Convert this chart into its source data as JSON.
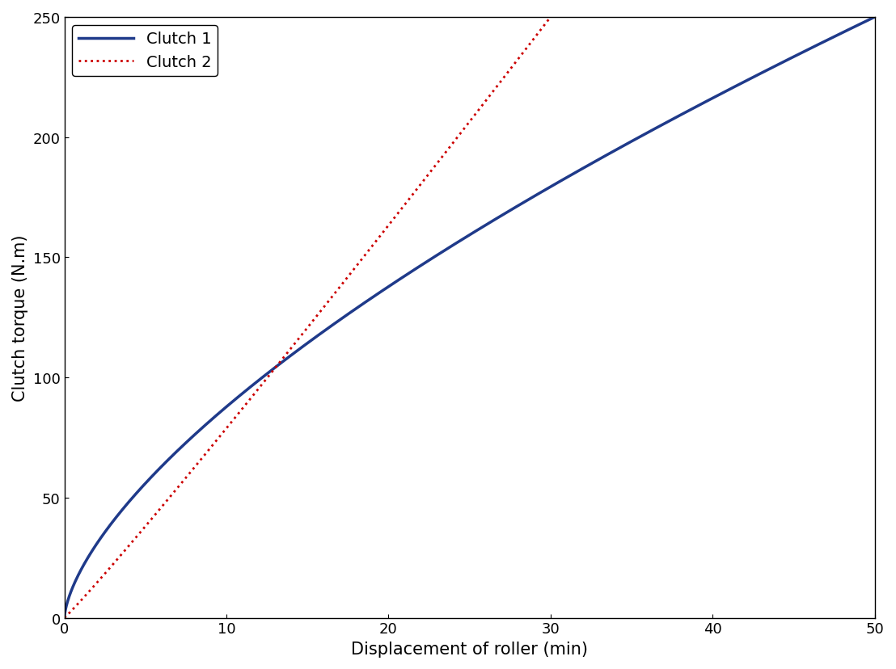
{
  "title": "",
  "xlabel": "Displacement of roller (min)",
  "ylabel": "Clutch torque (N.m)",
  "xlim": [
    0,
    50
  ],
  "ylim": [
    0,
    250
  ],
  "xticks": [
    0,
    10,
    20,
    30,
    40,
    50
  ],
  "yticks": [
    0,
    50,
    100,
    150,
    200,
    250
  ],
  "clutch1_label": "Clutch 1",
  "clutch2_label": "Clutch 2",
  "clutch1_color": "#1f3a8a",
  "clutch2_color": "#cc0000",
  "clutch1_linewidth": 2.5,
  "clutch2_linewidth": 2.0,
  "clutch1_power": 0.65,
  "clutch1_scale": 250,
  "clutch1_xmax": 50,
  "clutch2_power": 1.05,
  "clutch2_scale": 250,
  "clutch2_xmax": 30,
  "legend_fontsize": 14,
  "axis_fontsize": 15,
  "tick_fontsize": 13,
  "background_color": "#ffffff"
}
